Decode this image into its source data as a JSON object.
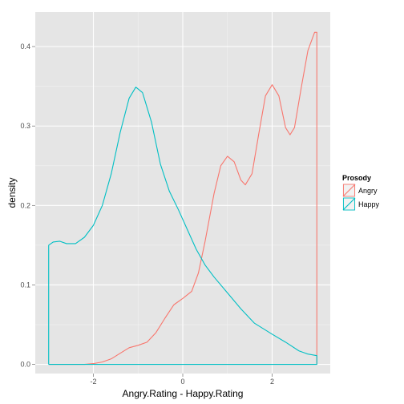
{
  "chart_data": {
    "type": "line",
    "title": "",
    "xlabel": "Angry.Rating - Happy.Rating",
    "ylabel": "density",
    "xlim": [
      -3.3,
      3.3
    ],
    "ylim": [
      -0.0115,
      0.4435
    ],
    "x_ticks": [
      -2,
      0,
      2
    ],
    "x_tick_labels": [
      "-2",
      "0",
      "2"
    ],
    "y_ticks": [
      0.0,
      0.1,
      0.2,
      0.3,
      0.4
    ],
    "y_tick_labels": [
      "0.0",
      "0.1",
      "0.2",
      "0.3",
      "0.4"
    ],
    "grid": true,
    "legend": {
      "title": "Prosody",
      "position": "right"
    },
    "series": [
      {
        "name": "Angry",
        "color": "#F8766D",
        "points": [
          [
            -3.0,
            0.0
          ],
          [
            -2.5,
            0.0
          ],
          [
            -2.2,
            0.0
          ],
          [
            -2.0,
            0.001
          ],
          [
            -1.8,
            0.003
          ],
          [
            -1.6,
            0.007
          ],
          [
            -1.4,
            0.014
          ],
          [
            -1.2,
            0.021
          ],
          [
            -1.0,
            0.024
          ],
          [
            -0.8,
            0.028
          ],
          [
            -0.6,
            0.04
          ],
          [
            -0.4,
            0.058
          ],
          [
            -0.2,
            0.075
          ],
          [
            0.0,
            0.083
          ],
          [
            0.2,
            0.092
          ],
          [
            0.35,
            0.115
          ],
          [
            0.5,
            0.155
          ],
          [
            0.7,
            0.215
          ],
          [
            0.85,
            0.25
          ],
          [
            1.0,
            0.262
          ],
          [
            1.15,
            0.255
          ],
          [
            1.3,
            0.232
          ],
          [
            1.4,
            0.226
          ],
          [
            1.55,
            0.24
          ],
          [
            1.7,
            0.29
          ],
          [
            1.85,
            0.338
          ],
          [
            2.0,
            0.352
          ],
          [
            2.15,
            0.338
          ],
          [
            2.3,
            0.298
          ],
          [
            2.4,
            0.289
          ],
          [
            2.5,
            0.298
          ],
          [
            2.65,
            0.348
          ],
          [
            2.8,
            0.395
          ],
          [
            2.95,
            0.418
          ],
          [
            3.0,
            0.418
          ],
          [
            3.0,
            0.0
          ]
        ]
      },
      {
        "name": "Happy",
        "color": "#00BFC4",
        "points": [
          [
            -3.0,
            0.0
          ],
          [
            -3.0,
            0.15
          ],
          [
            -2.9,
            0.154
          ],
          [
            -2.75,
            0.155
          ],
          [
            -2.6,
            0.152
          ],
          [
            -2.4,
            0.152
          ],
          [
            -2.2,
            0.16
          ],
          [
            -2.0,
            0.175
          ],
          [
            -1.8,
            0.2
          ],
          [
            -1.6,
            0.24
          ],
          [
            -1.4,
            0.292
          ],
          [
            -1.2,
            0.335
          ],
          [
            -1.05,
            0.349
          ],
          [
            -0.9,
            0.342
          ],
          [
            -0.7,
            0.305
          ],
          [
            -0.5,
            0.252
          ],
          [
            -0.3,
            0.218
          ],
          [
            -0.1,
            0.195
          ],
          [
            0.1,
            0.17
          ],
          [
            0.3,
            0.145
          ],
          [
            0.5,
            0.125
          ],
          [
            0.7,
            0.11
          ],
          [
            1.0,
            0.09
          ],
          [
            1.3,
            0.07
          ],
          [
            1.6,
            0.052
          ],
          [
            2.0,
            0.038
          ],
          [
            2.3,
            0.028
          ],
          [
            2.6,
            0.017
          ],
          [
            2.8,
            0.013
          ],
          [
            3.0,
            0.011
          ],
          [
            3.0,
            0.0
          ],
          [
            -3.0,
            0.0
          ]
        ]
      }
    ]
  }
}
